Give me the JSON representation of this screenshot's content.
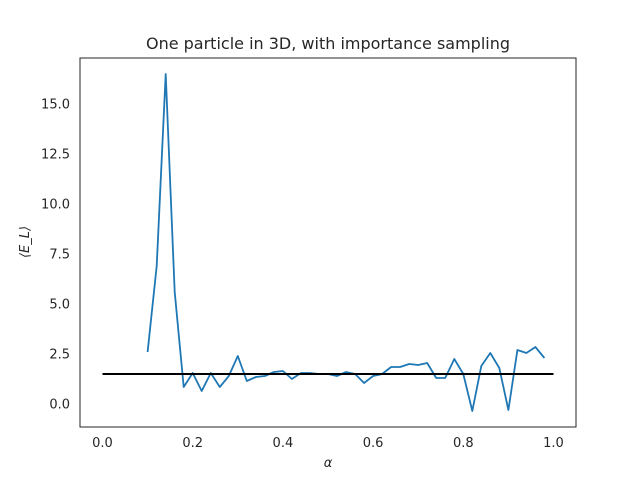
{
  "chart_data": {
    "type": "line",
    "title": "One particle in 3D, with importance sampling",
    "xlabel": "α",
    "ylabel": "⟨E_L⟩",
    "xlim": [
      -0.05,
      1.05
    ],
    "ylim": [
      -1.15,
      17.3
    ],
    "xticks": [
      0.0,
      0.2,
      0.4,
      0.6,
      0.8,
      1.0
    ],
    "xtick_labels": [
      "0.0",
      "0.2",
      "0.4",
      "0.6",
      "0.8",
      "1.0"
    ],
    "yticks": [
      0.0,
      2.5,
      5.0,
      7.5,
      10.0,
      12.5,
      15.0
    ],
    "ytick_labels": [
      "0.0",
      "2.5",
      "5.0",
      "7.5",
      "10.0",
      "12.5",
      "15.0"
    ],
    "grid": false,
    "legend": "none",
    "series": [
      {
        "color": "#1f77b4",
        "x": [
          0.1,
          0.12,
          0.14,
          0.16,
          0.18,
          0.2,
          0.22,
          0.24,
          0.26,
          0.28,
          0.3,
          0.32,
          0.34,
          0.36,
          0.38,
          0.4,
          0.42,
          0.44,
          0.46,
          0.48,
          0.5,
          0.52,
          0.54,
          0.56,
          0.58,
          0.6,
          0.62,
          0.64,
          0.66,
          0.68,
          0.7,
          0.72,
          0.74,
          0.76,
          0.78,
          0.8,
          0.82,
          0.84,
          0.86,
          0.88,
          0.9,
          0.92,
          0.94,
          0.96,
          0.98
        ],
        "y": [
          2.6,
          6.9,
          16.5,
          5.6,
          0.85,
          1.55,
          0.65,
          1.55,
          0.85,
          1.4,
          2.4,
          1.15,
          1.35,
          1.4,
          1.6,
          1.65,
          1.25,
          1.55,
          1.55,
          1.5,
          1.5,
          1.4,
          1.6,
          1.5,
          1.05,
          1.4,
          1.5,
          1.85,
          1.85,
          2.0,
          1.95,
          2.05,
          1.3,
          1.3,
          2.25,
          1.5,
          -0.35,
          1.9,
          2.55,
          1.8,
          -0.3,
          2.7,
          2.55,
          2.85,
          2.3
        ]
      },
      {
        "color": "#000000",
        "x": [
          0.0,
          1.0
        ],
        "y": [
          1.5,
          1.5
        ]
      }
    ]
  }
}
